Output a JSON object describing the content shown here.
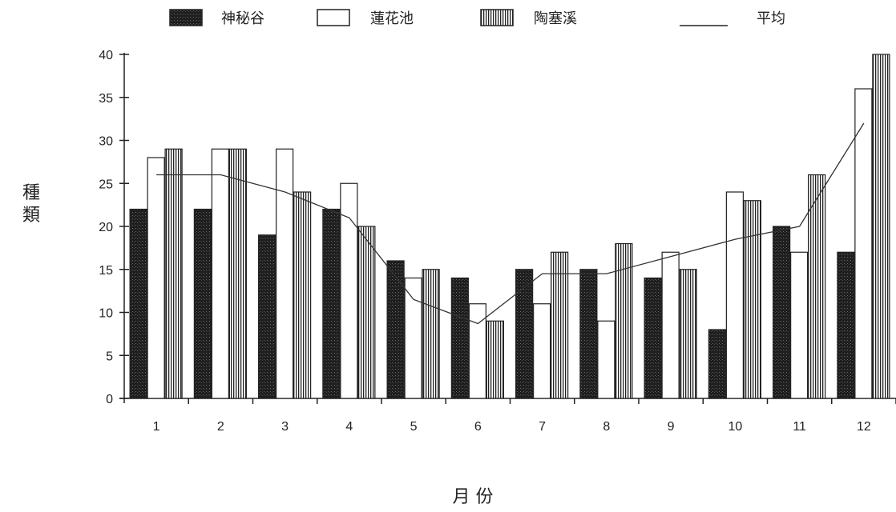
{
  "chart_data": {
    "type": "bar",
    "categories": [
      "1",
      "2",
      "3",
      "4",
      "5",
      "6",
      "7",
      "8",
      "9",
      "10",
      "11",
      "12"
    ],
    "series": [
      {
        "name": "神秘谷",
        "values": [
          22,
          22,
          19,
          22,
          16,
          14,
          15,
          15,
          14,
          8,
          20,
          17
        ]
      },
      {
        "name": "蓮花池",
        "values": [
          28,
          29,
          29,
          25,
          14,
          11,
          11,
          9,
          17,
          24,
          17,
          36
        ]
      },
      {
        "name": "陶塞溪",
        "values": [
          29,
          29,
          24,
          20,
          15,
          9,
          17,
          18,
          15,
          23,
          26,
          40
        ]
      }
    ],
    "line_series": {
      "name": "平均",
      "values": [
        26,
        26,
        24,
        21,
        11.5,
        8.7,
        14.5,
        14.5,
        16.5,
        18.5,
        20,
        32
      ]
    },
    "xlabel": "月 份",
    "ylabel": [
      "種",
      "類"
    ],
    "ylim": [
      0,
      40
    ],
    "yticks": [
      0,
      5,
      10,
      15,
      20,
      25,
      30,
      35,
      40
    ],
    "legend_position": "top",
    "grid": false,
    "colors": {
      "axis": "#222222",
      "bar_dark": "#1e1e1e",
      "bar_outline": "#222222",
      "background": "#ffffff"
    }
  }
}
